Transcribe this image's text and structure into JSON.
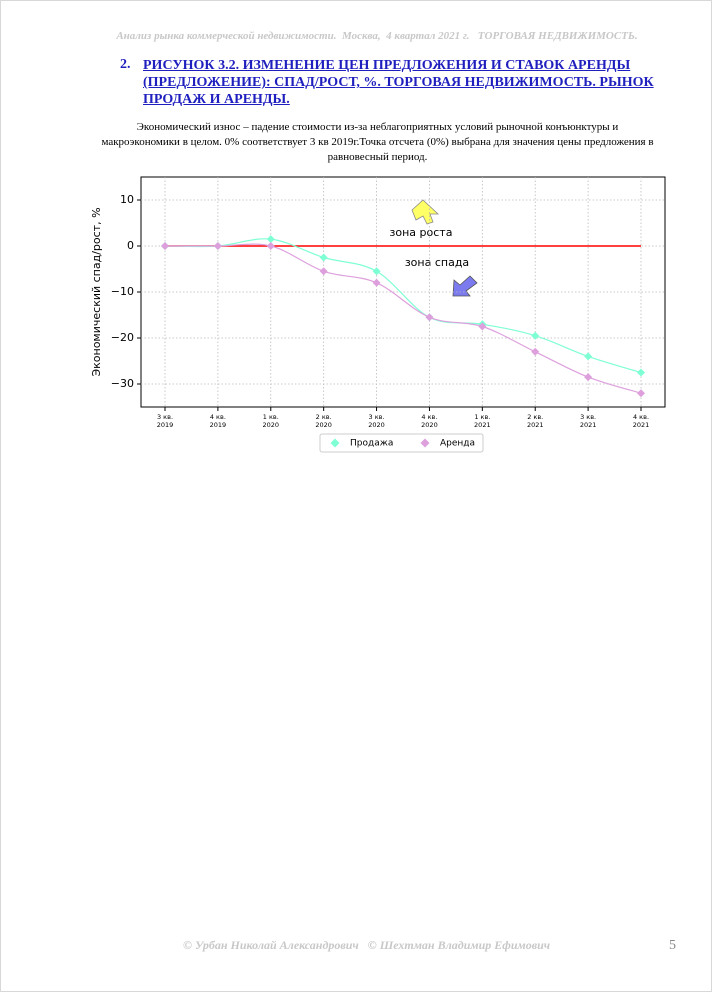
{
  "header": "Анализ рынка коммерческой недвижимости.  Москва,  4 квартал 2021 г.   ТОРГОВАЯ НЕДВИЖИМОСТЬ.",
  "heading": {
    "number": "2.",
    "text": "РИСУНОК 3.2. ИЗМЕНЕНИЕ ЦЕН ПРЕДЛОЖЕНИЯ И СТАВОК АРЕНДЫ (ПРЕДЛОЖЕНИЕ): СПАД/РОСТ, %. ТОРГОВАЯ НЕДВИЖИМОСТЬ. РЫНОК ПРОДАЖ И АРЕНДЫ."
  },
  "description": "Экономический износ – падение стоимости из-за неблагоприятных условий рыночной конъюнктуры и макроэкономики в целом. 0% соответствует 3 кв 2019г.Точка отсчета (0%) выбрана для значения цены предложения в равновесный период.",
  "chart_data": {
    "type": "line",
    "y_label": "Экономический спад/рост, %",
    "categories": [
      "3 кв.\n2019",
      "4 кв.\n2019",
      "1 кв.\n2020",
      "2 кв.\n2020",
      "3 кв.\n2020",
      "4 кв.\n2020",
      "1 кв.\n2021",
      "2 кв.\n2021",
      "3 кв.\n2021",
      "4 кв.\n2021"
    ],
    "series": [
      {
        "name": "Продажа",
        "color": "#7fffd4",
        "values": [
          0,
          0,
          1.5,
          -2.5,
          -5.5,
          -15.5,
          -17,
          -19.5,
          -24,
          -27.5
        ]
      },
      {
        "name": "Аренда",
        "color": "#dda0dd",
        "values": [
          0,
          0,
          0,
          -5.5,
          -8,
          -15.5,
          -17.5,
          -23,
          -28.5,
          -32
        ]
      }
    ],
    "reference_line": {
      "value": 0,
      "color": "#ff0000"
    },
    "annotations": [
      "зона роста",
      "зона спада"
    ],
    "ylim": [
      -35,
      15
    ],
    "yticks": [
      {
        "value": -30,
        "label": "−30"
      },
      {
        "value": -20,
        "label": "−20"
      },
      {
        "value": -10,
        "label": "−10"
      },
      0,
      10
    ],
    "grid": true,
    "legend": "bottom"
  },
  "footer": "© Урбан Николай Александрович   © Шехтман Владимир Ефимович",
  "page_number": 5
}
